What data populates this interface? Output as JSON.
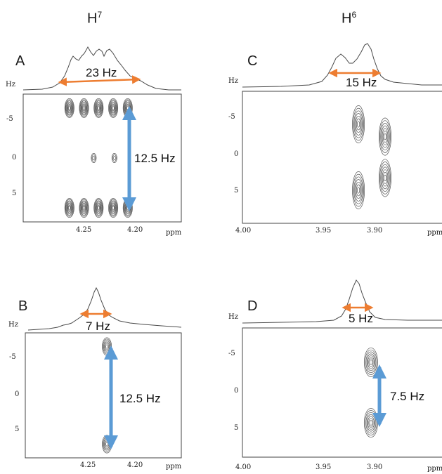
{
  "columns": [
    {
      "label": "H",
      "sup": "7"
    },
    {
      "label": "H",
      "sup": "6"
    }
  ],
  "colors": {
    "horizontal_arrow": "#ed7d31",
    "vertical_arrow": "#5b9bd5",
    "contour": "#555555"
  },
  "chart_data": [
    {
      "type": "2d-nmr-jres",
      "panel": "A",
      "column": "H7",
      "x_axis_unit": "ppm",
      "y_axis_unit": "Hz",
      "x_ticks": [
        "4.25",
        "4.20"
      ],
      "y_ticks": [
        "-5",
        "0",
        "5"
      ],
      "xlim": [
        4.3,
        4.17
      ],
      "ylim": [
        -8,
        8
      ],
      "horizontal_coupling": {
        "label": "23 Hz",
        "value_hz": 23
      },
      "vertical_coupling": {
        "label": "12.5 Hz",
        "value_hz": 12.5
      },
      "peaks": [
        {
          "ppm": 4.262,
          "hz": -6.25
        },
        {
          "ppm": 4.25,
          "hz": -6.25
        },
        {
          "ppm": 4.238,
          "hz": -6.25
        },
        {
          "ppm": 4.226,
          "hz": -6.25
        },
        {
          "ppm": 4.214,
          "hz": -6.25
        },
        {
          "ppm": 4.242,
          "hz": 0
        },
        {
          "ppm": 4.225,
          "hz": 0
        },
        {
          "ppm": 4.262,
          "hz": 6.25
        },
        {
          "ppm": 4.25,
          "hz": 6.25
        },
        {
          "ppm": 4.238,
          "hz": 6.25
        },
        {
          "ppm": 4.226,
          "hz": 6.25
        },
        {
          "ppm": 4.214,
          "hz": 6.25
        }
      ]
    },
    {
      "type": "2d-nmr-jres",
      "panel": "B",
      "column": "H7",
      "x_axis_unit": "ppm",
      "y_axis_unit": "Hz",
      "x_ticks": [
        "4.25",
        "4.20"
      ],
      "y_ticks": [
        "-5",
        "0",
        "5"
      ],
      "xlim": [
        4.3,
        4.17
      ],
      "ylim": [
        -8,
        8
      ],
      "horizontal_coupling": {
        "label": "7 Hz",
        "value_hz": 7
      },
      "vertical_coupling": {
        "label": "12.5 Hz",
        "value_hz": 12.5
      },
      "peaks": [
        {
          "ppm": 4.232,
          "hz": -6.25
        },
        {
          "ppm": 4.232,
          "hz": 6.25
        }
      ]
    },
    {
      "type": "2d-nmr-jres",
      "panel": "C",
      "column": "H6",
      "x_axis_unit": "ppm",
      "y_axis_unit": "Hz",
      "x_ticks": [
        "4.00",
        "3.95",
        "3.90",
        "ppm"
      ],
      "y_ticks": [
        "-5",
        "0",
        "5"
      ],
      "xlim": [
        4.0,
        3.87
      ],
      "ylim": [
        -8,
        8
      ],
      "horizontal_coupling": {
        "label": "15 Hz",
        "value_hz": 15
      },
      "peaks": [
        {
          "ppm": 3.926,
          "hz": -4
        },
        {
          "ppm": 3.909,
          "hz": -2.5
        },
        {
          "ppm": 3.926,
          "hz": 4
        },
        {
          "ppm": 3.909,
          "hz": 2.5
        }
      ]
    },
    {
      "type": "2d-nmr-jres",
      "panel": "D",
      "column": "H6",
      "x_axis_unit": "ppm",
      "y_axis_unit": "Hz",
      "x_ticks": [
        "4.00",
        "3.95",
        "3.90",
        "ppm"
      ],
      "y_ticks": [
        "-5",
        "0",
        "5"
      ],
      "xlim": [
        4.0,
        3.87
      ],
      "ylim": [
        -8,
        8
      ],
      "horizontal_coupling": {
        "label": "5 Hz",
        "value_hz": 5
      },
      "vertical_coupling": {
        "label": "7.5 Hz",
        "value_hz": 7.5
      },
      "peaks": [
        {
          "ppm": 3.918,
          "hz": -3.75
        },
        {
          "ppm": 3.918,
          "hz": 3.75
        }
      ]
    }
  ]
}
